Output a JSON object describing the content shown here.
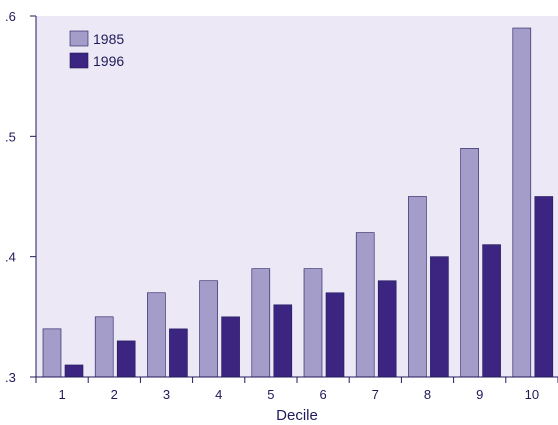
{
  "chart_data": {
    "type": "bar",
    "title": "",
    "xlabel": "Decile",
    "ylabel": "",
    "categories": [
      "1",
      "2",
      "3",
      "4",
      "5",
      "6",
      "7",
      "8",
      "9",
      "10"
    ],
    "series": [
      {
        "name": "1985",
        "values": [
          0.34,
          0.35,
          0.37,
          0.38,
          0.39,
          0.39,
          0.42,
          0.45,
          0.49,
          0.59
        ],
        "color": "#a49cc9"
      },
      {
        "name": "1996",
        "values": [
          0.31,
          0.33,
          0.34,
          0.35,
          0.36,
          0.37,
          0.38,
          0.4,
          0.41,
          0.45
        ],
        "color": "#3b2580"
      }
    ],
    "ylim": [
      0.3,
      0.6
    ],
    "yticks": [
      0.3,
      0.4,
      0.5,
      0.6
    ],
    "ytick_labels": [
      ".3",
      ".4",
      ".5",
      ".6"
    ],
    "grid": false,
    "legend_position": "top-left",
    "plot_background": "#ece8f5",
    "axis_color": "#1f1a5a"
  }
}
